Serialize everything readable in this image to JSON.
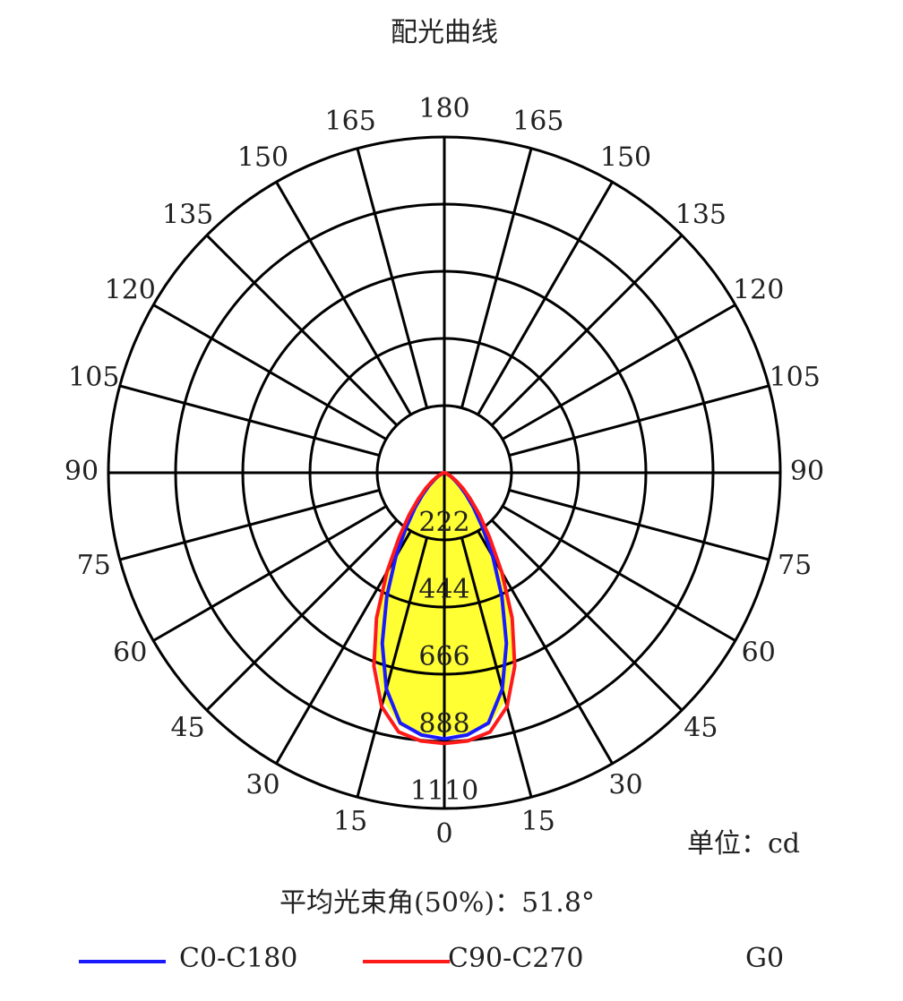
{
  "chart_data": {
    "type": "polar",
    "title": "配光曲线",
    "unit_label": "单位：cd",
    "beam_angle_label": "平均光束角(50%)：51.8°",
    "x": [
      0,
      5,
      10,
      15,
      20,
      25,
      30,
      35,
      40,
      45,
      50,
      55,
      60,
      65,
      70,
      75,
      80,
      85,
      90
    ],
    "angle_ticks": [
      0,
      15,
      30,
      45,
      60,
      75,
      90,
      105,
      120,
      135,
      150,
      165,
      180
    ],
    "rlim": [
      0,
      1110
    ],
    "rticks": [
      222,
      444,
      666,
      888,
      1110
    ],
    "series": [
      {
        "name": "C0-C180",
        "color": "#1a1aff",
        "values": [
          880,
          870,
          840,
          740,
          600,
          450,
          320,
          220,
          150,
          100,
          65,
          40,
          25,
          12,
          6,
          3,
          2,
          1,
          0
        ]
      },
      {
        "name": "C90-C270",
        "color": "#ff1a1a",
        "values": [
          895,
          890,
          870,
          800,
          680,
          530,
          380,
          260,
          180,
          120,
          80,
          50,
          30,
          15,
          8,
          4,
          2,
          1,
          0
        ]
      },
      {
        "name": "G0",
        "color": "#ffff33",
        "values": [
          870,
          865,
          850,
          780,
          660,
          510,
          365,
          250,
          170,
          115,
          75,
          48,
          28,
          14,
          7,
          3,
          2,
          1,
          0
        ]
      }
    ]
  }
}
